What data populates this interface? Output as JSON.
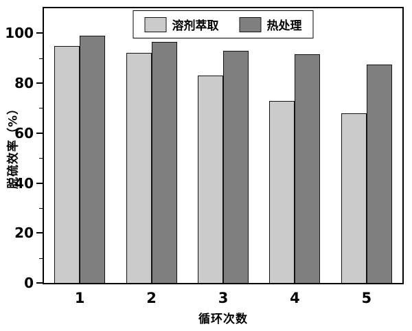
{
  "chart_data": {
    "type": "bar",
    "title": "",
    "categories": [
      "1",
      "2",
      "3",
      "4",
      "5"
    ],
    "series": [
      {
        "name": "溶剂萃取",
        "color": "#cbcbcb",
        "values": [
          95,
          92,
          83,
          73,
          68
        ]
      },
      {
        "name": "热处理",
        "color": "#7f7f7f",
        "values": [
          99,
          96.5,
          93,
          91.5,
          87.5
        ]
      }
    ],
    "xlabel": "循环次数",
    "ylabel": "脱硫效率（%）",
    "ylim": [
      0,
      110
    ],
    "yticks": [
      0,
      20,
      40,
      60,
      80,
      100
    ],
    "minor_tick_interval": 10,
    "legend_position": "top-center",
    "grid": false,
    "bar_border_color": "#111111",
    "axis_color": "#000000"
  }
}
